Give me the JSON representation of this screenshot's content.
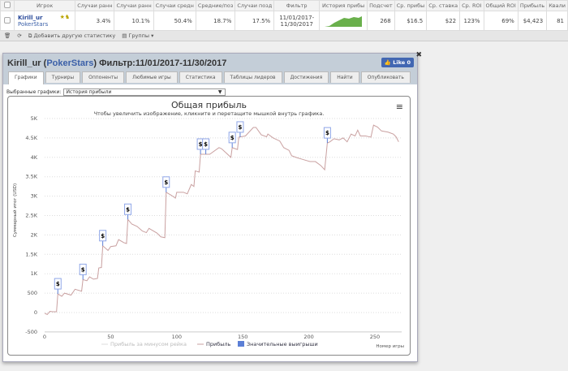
{
  "table": {
    "headers": [
      "Игрок",
      "Случаи ранн",
      "Случаи ранн",
      "Случаи средн",
      "Средние/поз",
      "Случаи позд",
      "Фильтр",
      "История прибы",
      "Подсчет",
      "Ср. прибы",
      "Ср. ставка",
      "Ср. ROI",
      "Общий ROI",
      "Прибыль",
      "Квали"
    ],
    "row": {
      "player": "Kirill_ur",
      "site": "PokerStars",
      "c1": "3.4%",
      "c2": "10.1%",
      "c3": "50.4%",
      "c4": "18.7%",
      "c5": "17.5%",
      "filter": "11/01/2017-11/30/2017",
      "count": "268",
      "avg_profit": "$16.5",
      "avg_stake": "$22",
      "avg_roi": "123%",
      "total_roi": "69%",
      "profit": "$4,423",
      "q": "81"
    }
  },
  "toolbar": {
    "add_stat": "Добавить другую статистику",
    "groups": "Группы"
  },
  "dialog": {
    "player": "Kirill_ur",
    "site": "PokerStars",
    "filter": "Фильтр:11/01/2017-11/30/2017",
    "like": "Like 0",
    "tabs": [
      "Графики",
      "Турниры",
      "Оппоненты",
      "Любимые игры",
      "Статистика",
      "Таблицы лидеров",
      "Достижения",
      "Найти",
      "Опубликовать"
    ],
    "select_label": "Выбранные графики:",
    "select_value": "История прибыли"
  },
  "chart_data": {
    "type": "line",
    "title": "Общая прибыль",
    "subtitle": "Чтобы увеличить изображение, кликните и перетащите мышкой внутрь графика.",
    "xlabel": "Номер игры",
    "ylabel": "Суммарный итог (USD)",
    "xlim": [
      0,
      270
    ],
    "ylim": [
      -500,
      5000
    ],
    "xticks": [
      "0",
      "50",
      "100",
      "150",
      "200",
      "250"
    ],
    "yticks": [
      "-500",
      "0",
      "500",
      "1K",
      "1.5K",
      "2K",
      "2.5K",
      "3K",
      "3.5K",
      "4K",
      "4.5K",
      "5K"
    ],
    "legend": [
      "Прибыль за минусом рейка",
      "Прибыль",
      "Значительные выигрыши"
    ],
    "grid": true,
    "legend_position": "bottom",
    "colors": {
      "profit": "#c9a0a0",
      "rake": "#dddddd",
      "bigwin": "#5b7fd6"
    },
    "series": [
      {
        "name": "Прибыль",
        "points": [
          [
            0,
            -20
          ],
          [
            2,
            -50
          ],
          [
            4,
            30
          ],
          [
            6,
            20
          ],
          [
            9,
            20
          ],
          [
            10,
            480
          ],
          [
            13,
            420
          ],
          [
            15,
            500
          ],
          [
            20,
            450
          ],
          [
            23,
            600
          ],
          [
            28,
            550
          ],
          [
            29,
            850
          ],
          [
            32,
            820
          ],
          [
            34,
            920
          ],
          [
            37,
            860
          ],
          [
            40,
            880
          ],
          [
            41,
            1150
          ],
          [
            43,
            1160
          ],
          [
            44,
            1720
          ],
          [
            48,
            1600
          ],
          [
            50,
            1700
          ],
          [
            54,
            1720
          ],
          [
            56,
            1880
          ],
          [
            60,
            1800
          ],
          [
            62,
            1780
          ],
          [
            63,
            2400
          ],
          [
            66,
            2280
          ],
          [
            70,
            2220
          ],
          [
            74,
            2100
          ],
          [
            77,
            2060
          ],
          [
            79,
            2170
          ],
          [
            85,
            2050
          ],
          [
            88,
            1950
          ],
          [
            91,
            1930
          ],
          [
            92,
            3100
          ],
          [
            96,
            3020
          ],
          [
            99,
            2950
          ],
          [
            100,
            3100
          ],
          [
            105,
            3100
          ],
          [
            108,
            3060
          ],
          [
            111,
            3300
          ],
          [
            113,
            3250
          ],
          [
            114,
            3650
          ],
          [
            117,
            3620
          ],
          [
            118,
            4080
          ],
          [
            125,
            4080
          ],
          [
            132,
            4250
          ],
          [
            134,
            4220
          ],
          [
            141,
            4000
          ],
          [
            142,
            4250
          ],
          [
            146,
            4200
          ],
          [
            147,
            4520
          ],
          [
            152,
            4550
          ],
          [
            158,
            4770
          ],
          [
            160,
            4770
          ],
          [
            164,
            4580
          ],
          [
            168,
            4530
          ],
          [
            169,
            4600
          ],
          [
            173,
            4500
          ],
          [
            178,
            4420
          ],
          [
            181,
            4250
          ],
          [
            185,
            4180
          ],
          [
            187,
            4040
          ],
          [
            191,
            3990
          ],
          [
            195,
            3950
          ],
          [
            201,
            3890
          ],
          [
            205,
            3890
          ],
          [
            209,
            3790
          ],
          [
            212,
            3680
          ],
          [
            214,
            4370
          ],
          [
            216,
            4400
          ],
          [
            219,
            4480
          ],
          [
            223,
            4450
          ],
          [
            226,
            4500
          ],
          [
            229,
            4400
          ],
          [
            232,
            4600
          ],
          [
            235,
            4550
          ],
          [
            237,
            4700
          ],
          [
            239,
            4550
          ],
          [
            243,
            4550
          ],
          [
            247,
            4520
          ],
          [
            249,
            4830
          ],
          [
            252,
            4780
          ],
          [
            255,
            4680
          ],
          [
            260,
            4650
          ],
          [
            264,
            4600
          ],
          [
            266,
            4530
          ],
          [
            268,
            4400
          ]
        ]
      }
    ],
    "big_wins": [
      10,
      29,
      44,
      63,
      92,
      118,
      122,
      142,
      148,
      214
    ],
    "big_win_label": "$"
  }
}
